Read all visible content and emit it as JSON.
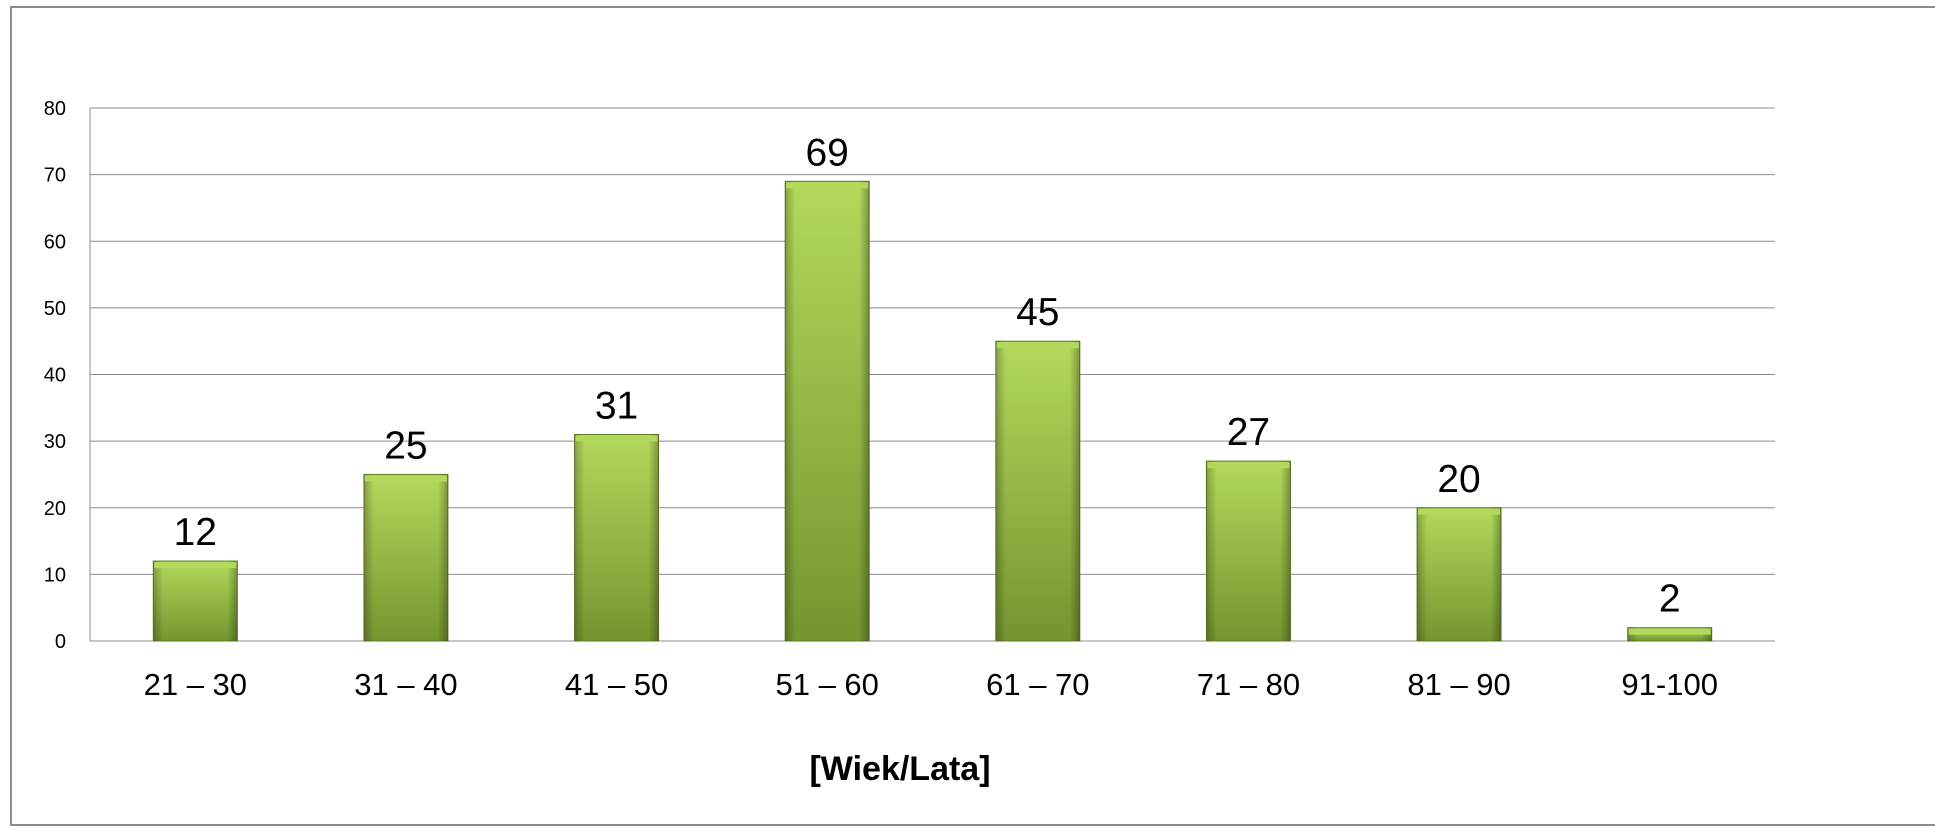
{
  "chart_data": {
    "type": "bar",
    "categories": [
      "21 – 30",
      "31 – 40",
      "41 – 50",
      "51 – 60",
      "61 – 70",
      "71 – 80",
      "81 – 90",
      "91-100"
    ],
    "values": [
      12,
      25,
      31,
      69,
      45,
      27,
      20,
      2
    ],
    "title": "",
    "xlabel": "[Wiek/Lata]",
    "ylabel": "",
    "ylim": [
      0,
      80
    ],
    "yticks": [
      0,
      10,
      20,
      30,
      40,
      50,
      60,
      70,
      80
    ],
    "ytick_labels": [
      "0",
      "10",
      "20",
      "30",
      "40",
      "50",
      "60",
      "70",
      "80"
    ],
    "data_labels": [
      "12",
      "25",
      "31",
      "69",
      "45",
      "27",
      "20",
      "2"
    ],
    "grid": true,
    "legend": "none",
    "colors": {
      "bar_light": "#b3d95c",
      "bar_mid": "#93be45",
      "bar_dark": "#74952f",
      "bar_edge": "#5f7d25",
      "gridline": "#8c8c8c"
    }
  }
}
